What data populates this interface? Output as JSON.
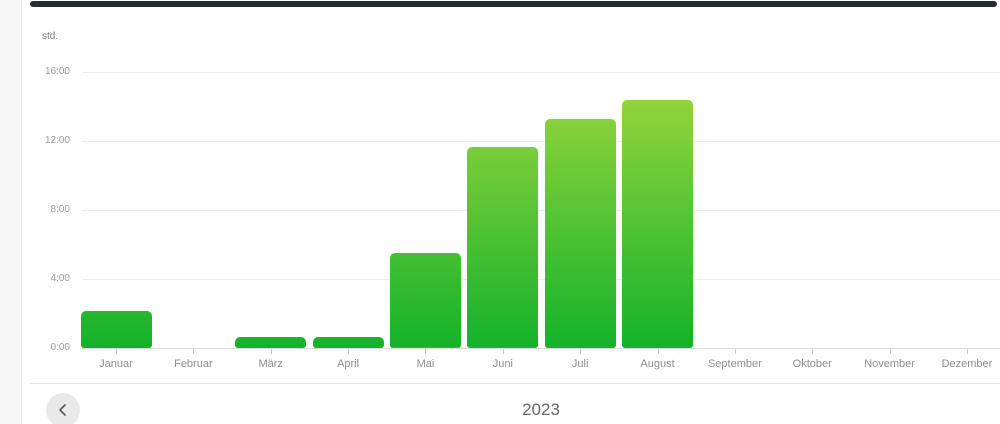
{
  "chart": {
    "unit_label": "std."
  },
  "chart_data": {
    "type": "bar",
    "title": "2023",
    "ylabel": "std.",
    "value_unit": "hours",
    "categories": [
      "Januar",
      "Februar",
      "März",
      "April",
      "Mai",
      "Juni",
      "Juli",
      "August",
      "September",
      "Oktober",
      "November",
      "Dezember"
    ],
    "values": [
      2.15,
      0,
      0.65,
      0.65,
      5.5,
      11.65,
      13.3,
      14.4,
      0,
      0,
      0,
      0
    ],
    "ylim": [
      0,
      16
    ],
    "y_ticks_top_down": [
      "16:00",
      "12:00",
      "8:00",
      "4:00",
      "0:00"
    ],
    "grid": true,
    "legend": false,
    "bar_gradient_bottom": "#14b22b",
    "bar_gradient_top": "#9fd83d"
  },
  "footer": {
    "prev_button_icon": "chevron-left-icon",
    "year_label": "2023"
  },
  "colors": {
    "background": "#ffffff",
    "sidebar": "#f7f7f8",
    "top_bar": "#272c34",
    "gridline": "#ececec",
    "axis_text": "#9b9b9b",
    "month_text": "#8d8d8d",
    "year_text": "#666666",
    "button_circle": "#e9e9e9",
    "button_chevron": "#606060"
  }
}
